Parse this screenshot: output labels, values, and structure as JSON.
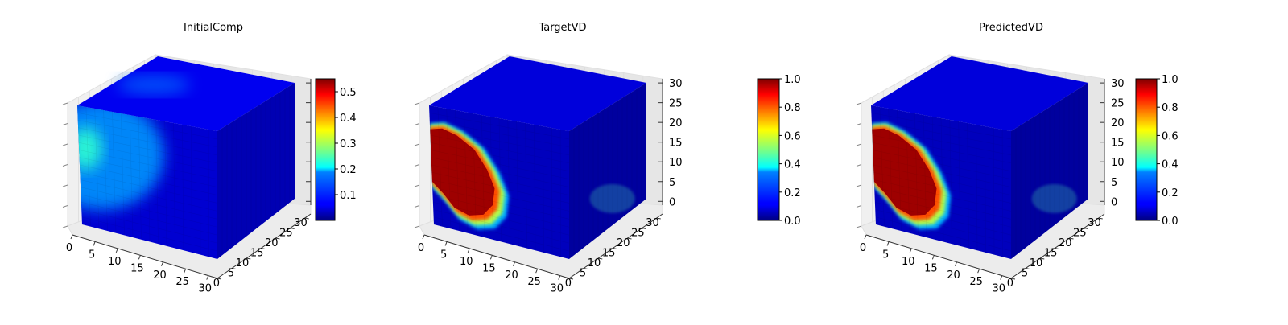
{
  "chart_data": [
    {
      "type": "heatmap",
      "subtype": "3d-voxel-cube",
      "title": "InitialComp",
      "x_ticks": [
        "0",
        "5",
        "10",
        "15",
        "20",
        "25",
        "30"
      ],
      "y_ticks": [
        "0",
        "5",
        "10",
        "15",
        "20",
        "25",
        "30"
      ],
      "z_ticks": [
        "",
        "",
        "",
        "",
        "",
        "",
        ""
      ],
      "xlim": [
        0,
        32
      ],
      "ylim": [
        0,
        32
      ],
      "zlim": [
        0,
        32
      ],
      "colormap": "jet",
      "colorbar": {
        "min": 0.0,
        "max": 0.55,
        "ticks": [
          "0.1",
          "0.2",
          "0.3",
          "0.4",
          "0.5"
        ],
        "tick_values": [
          0.1,
          0.2,
          0.3,
          0.4,
          0.5
        ]
      },
      "field": {
        "background": 0.02,
        "blob_peak": 0.22,
        "blob_center_x": 8,
        "blob_center_z": 20,
        "blob_radius": 12,
        "shape": "diffuse"
      }
    },
    {
      "type": "heatmap",
      "subtype": "3d-voxel-cube",
      "title": "TargetVD",
      "x_ticks": [
        "0",
        "5",
        "10",
        "15",
        "20",
        "25",
        "30"
      ],
      "y_ticks": [
        "0",
        "5",
        "10",
        "15",
        "20",
        "25",
        "30"
      ],
      "z_ticks": [
        "0",
        "5",
        "10",
        "15",
        "20",
        "25",
        "30"
      ],
      "xlim": [
        0,
        32
      ],
      "ylim": [
        0,
        32
      ],
      "zlim": [
        0,
        32
      ],
      "colormap": "jet",
      "colorbar": {
        "min": 0.0,
        "max": 1.0,
        "ticks": [
          "0.0",
          "0.2",
          "0.4",
          "0.6",
          "0.8",
          "1.0"
        ],
        "tick_values": [
          0.0,
          0.2,
          0.4,
          0.6,
          0.8,
          1.0
        ]
      },
      "field": {
        "background": 0.0,
        "blob_peak": 1.0,
        "blob_center_x": 8,
        "blob_center_z": 15,
        "blob_radius": 9,
        "shape": "sharp"
      }
    },
    {
      "type": "heatmap",
      "subtype": "3d-voxel-cube",
      "title": "PredictedVD",
      "x_ticks": [
        "0",
        "5",
        "10",
        "15",
        "20",
        "25",
        "30"
      ],
      "y_ticks": [
        "0",
        "5",
        "10",
        "15",
        "20",
        "25",
        "30"
      ],
      "z_ticks": [
        "0",
        "5",
        "10",
        "15",
        "20",
        "25",
        "30"
      ],
      "xlim": [
        0,
        32
      ],
      "ylim": [
        0,
        32
      ],
      "zlim": [
        0,
        32
      ],
      "colormap": "jet",
      "colorbar": {
        "min": 0.0,
        "max": 1.0,
        "ticks": [
          "0.0",
          "0.2",
          "0.4",
          "0.6",
          "0.8",
          "1.0"
        ],
        "tick_values": [
          0.0,
          0.2,
          0.4,
          0.6,
          0.8,
          1.0
        ]
      },
      "field": {
        "background": 0.0,
        "blob_peak": 1.0,
        "blob_center_x": 8,
        "blob_center_z": 15,
        "blob_radius": 9,
        "shape": "sharp"
      }
    }
  ]
}
